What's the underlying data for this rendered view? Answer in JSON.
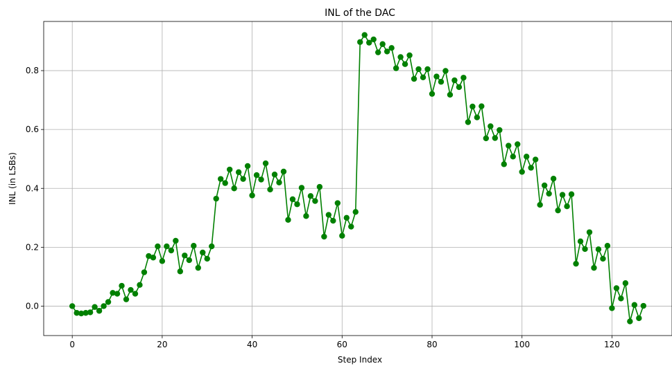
{
  "chart_data": {
    "type": "line",
    "title": "INL of the DAC",
    "xlabel": "Step Index",
    "ylabel": "INL (in LSBs)",
    "xlim": [
      -6.35,
      133.35
    ],
    "ylim": [
      -0.1,
      0.967
    ],
    "xticks": [
      0,
      20,
      40,
      60,
      80,
      100,
      120
    ],
    "xtick_labels": [
      "0",
      "20",
      "40",
      "60",
      "80",
      "100",
      "120"
    ],
    "yticks": [
      0.0,
      0.2,
      0.4,
      0.6,
      0.8
    ],
    "ytick_labels": [
      "0.0",
      "0.2",
      "0.4",
      "0.6",
      "0.8"
    ],
    "grid": true,
    "series": [
      {
        "color": "#008000",
        "marker": "circle",
        "x": [
          0,
          1,
          2,
          3,
          4,
          5,
          6,
          7,
          8,
          9,
          10,
          11,
          12,
          13,
          14,
          15,
          16,
          17,
          18,
          19,
          20,
          21,
          22,
          23,
          24,
          25,
          26,
          27,
          28,
          29,
          30,
          31,
          32,
          33,
          34,
          35,
          36,
          37,
          38,
          39,
          40,
          41,
          42,
          43,
          44,
          45,
          46,
          47,
          48,
          49,
          50,
          51,
          52,
          53,
          54,
          55,
          56,
          57,
          58,
          59,
          60,
          61,
          62,
          63,
          64,
          65,
          66,
          67,
          68,
          69,
          70,
          71,
          72,
          73,
          74,
          75,
          76,
          77,
          78,
          79,
          80,
          81,
          82,
          83,
          84,
          85,
          86,
          87,
          88,
          89,
          90,
          91,
          92,
          93,
          94,
          95,
          96,
          97,
          98,
          99,
          100,
          101,
          102,
          103,
          104,
          105,
          106,
          107,
          108,
          109,
          110,
          111,
          112,
          113,
          114,
          115,
          116,
          117,
          118,
          119,
          120,
          121,
          122,
          123,
          124,
          125,
          126,
          127
        ],
        "y": [
          0.0,
          -0.023,
          -0.025,
          -0.023,
          -0.021,
          -0.003,
          -0.016,
          0.0,
          0.014,
          0.045,
          0.042,
          0.069,
          0.023,
          0.055,
          0.042,
          0.072,
          0.115,
          0.17,
          0.165,
          0.203,
          0.153,
          0.203,
          0.189,
          0.222,
          0.118,
          0.172,
          0.156,
          0.205,
          0.13,
          0.182,
          0.161,
          0.203,
          0.365,
          0.432,
          0.418,
          0.464,
          0.4,
          0.455,
          0.432,
          0.476,
          0.376,
          0.445,
          0.43,
          0.485,
          0.396,
          0.447,
          0.42,
          0.457,
          0.293,
          0.363,
          0.346,
          0.402,
          0.306,
          0.374,
          0.357,
          0.405,
          0.236,
          0.31,
          0.29,
          0.35,
          0.239,
          0.3,
          0.27,
          0.32,
          0.897,
          0.921,
          0.895,
          0.906,
          0.862,
          0.89,
          0.865,
          0.877,
          0.808,
          0.846,
          0.822,
          0.852,
          0.772,
          0.805,
          0.777,
          0.805,
          0.721,
          0.78,
          0.762,
          0.799,
          0.718,
          0.767,
          0.744,
          0.776,
          0.625,
          0.678,
          0.641,
          0.679,
          0.57,
          0.611,
          0.571,
          0.598,
          0.482,
          0.545,
          0.508,
          0.55,
          0.456,
          0.508,
          0.47,
          0.498,
          0.344,
          0.41,
          0.382,
          0.433,
          0.325,
          0.378,
          0.339,
          0.38,
          0.144,
          0.22,
          0.194,
          0.251,
          0.13,
          0.193,
          0.161,
          0.205,
          -0.007,
          0.061,
          0.026,
          0.078,
          -0.052,
          0.004,
          -0.041,
          0.001
        ]
      }
    ]
  }
}
